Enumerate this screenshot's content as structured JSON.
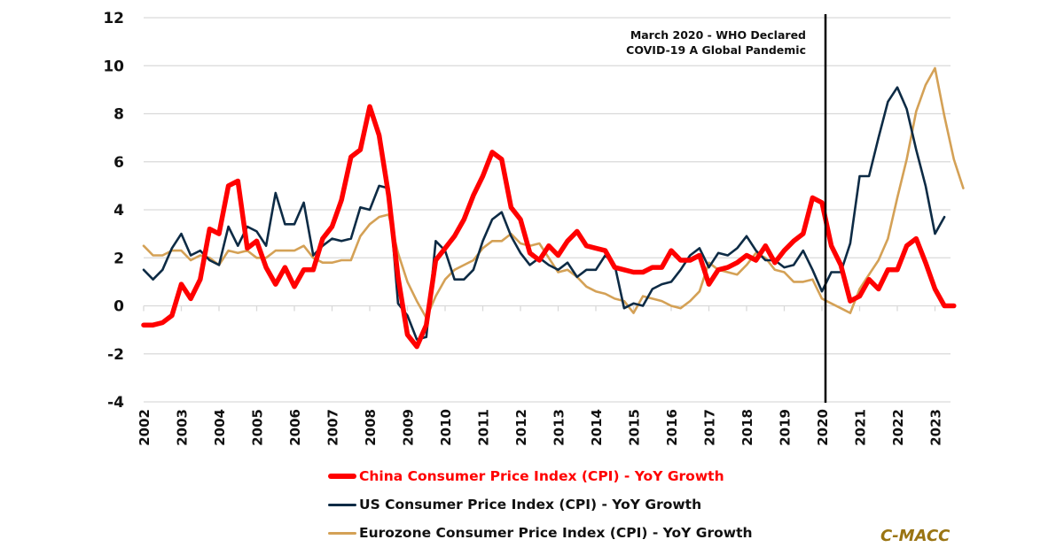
{
  "chart_data": {
    "type": "line",
    "title": "",
    "xlabel": "",
    "ylabel": "",
    "ylim": [
      -4,
      12
    ],
    "yticks": [
      12,
      10,
      8,
      6,
      4,
      2,
      0,
      -2,
      -4
    ],
    "x_categories": [
      "2002",
      "2003",
      "2004",
      "2005",
      "2006",
      "2007",
      "2008",
      "2009",
      "2010",
      "2011",
      "2012",
      "2013",
      "2014",
      "2015",
      "2016",
      "2017",
      "2018",
      "2019",
      "2020",
      "2021",
      "2022",
      "2023"
    ],
    "x_frequency": "quarterly",
    "x_start": "2002 Q1",
    "grid": true,
    "legend_position": "bottom",
    "annotation": {
      "x": "2020 Q1",
      "line1": "March 2020 - WHO Declared",
      "line2": "COVID-19 A Global Pandemic"
    },
    "series": [
      {
        "name": "China Consumer Price Index (CPI) - YoY Growth",
        "color": "#ff0000",
        "values": [
          -0.8,
          -0.8,
          -0.7,
          -0.4,
          0.9,
          0.3,
          1.1,
          3.2,
          3.0,
          5.0,
          5.2,
          2.4,
          2.7,
          1.6,
          0.9,
          1.6,
          0.8,
          1.5,
          1.5,
          2.8,
          3.3,
          4.4,
          6.2,
          6.5,
          8.3,
          7.1,
          4.6,
          1.2,
          -1.2,
          -1.7,
          -0.8,
          1.9,
          2.4,
          2.9,
          3.6,
          4.6,
          5.4,
          6.4,
          6.1,
          4.1,
          3.6,
          2.2,
          1.9,
          2.5,
          2.1,
          2.7,
          3.1,
          2.5,
          2.4,
          2.3,
          1.6,
          1.5,
          1.4,
          1.4,
          1.6,
          1.6,
          2.3,
          1.9,
          1.9,
          2.1,
          0.9,
          1.5,
          1.6,
          1.8,
          2.1,
          1.9,
          2.5,
          1.8,
          2.3,
          2.7,
          3.0,
          4.5,
          4.3,
          2.5,
          1.7,
          0.2,
          0.4,
          1.1,
          0.7,
          1.5,
          1.5,
          2.5,
          2.8,
          1.8,
          0.7,
          0.0,
          0.0
        ]
      },
      {
        "name": "US Consumer Price Index (CPI) - YoY Growth",
        "color": "#0d2b45",
        "values": [
          1.5,
          1.1,
          1.5,
          2.4,
          3.0,
          2.1,
          2.3,
          1.9,
          1.7,
          3.3,
          2.5,
          3.3,
          3.1,
          2.5,
          4.7,
          3.4,
          3.4,
          4.3,
          2.1,
          2.5,
          2.8,
          2.7,
          2.8,
          4.1,
          4.0,
          5.0,
          4.9,
          0.1,
          -0.4,
          -1.4,
          -1.3,
          2.7,
          2.3,
          1.1,
          1.1,
          1.5,
          2.7,
          3.6,
          3.9,
          2.9,
          2.2,
          1.7,
          2.0,
          1.7,
          1.5,
          1.8,
          1.2,
          1.5,
          1.5,
          2.1,
          1.7,
          -0.1,
          0.1,
          0.0,
          0.7,
          0.9,
          1.0,
          1.5,
          2.1,
          2.4,
          1.6,
          2.2,
          2.1,
          2.4,
          2.9,
          2.3,
          1.9,
          1.9,
          1.6,
          1.7,
          2.3,
          1.5,
          0.6,
          1.4,
          1.4,
          2.6,
          5.4,
          5.4,
          7.0,
          8.5,
          9.1,
          8.2,
          6.5,
          5.0,
          3.0,
          3.7
        ]
      },
      {
        "name": "Eurozone Consumer Price Index (CPI) - YoY Growth",
        "color": "#d4a156",
        "values": [
          2.5,
          2.1,
          2.1,
          2.3,
          2.3,
          1.9,
          2.1,
          2.0,
          1.7,
          2.3,
          2.2,
          2.3,
          2.0,
          2.0,
          2.3,
          2.3,
          2.3,
          2.5,
          2.0,
          1.8,
          1.8,
          1.9,
          1.9,
          2.9,
          3.4,
          3.7,
          3.8,
          2.2,
          1.0,
          0.2,
          -0.5,
          0.4,
          1.1,
          1.5,
          1.7,
          1.9,
          2.4,
          2.7,
          2.7,
          3.0,
          2.6,
          2.5,
          2.6,
          2.0,
          1.4,
          1.5,
          1.2,
          0.8,
          0.6,
          0.5,
          0.3,
          0.2,
          -0.3,
          0.4,
          0.3,
          0.2,
          0.0,
          -0.1,
          0.2,
          0.6,
          1.8,
          1.5,
          1.4,
          1.3,
          1.7,
          2.2,
          2.0,
          1.5,
          1.4,
          1.0,
          1.0,
          1.1,
          0.3,
          0.1,
          -0.1,
          -0.3,
          0.7,
          1.3,
          1.9,
          2.8,
          4.5,
          6.1,
          8.1,
          9.2,
          9.9,
          7.9,
          6.1,
          4.9
        ]
      }
    ]
  },
  "legend": {
    "items": [
      {
        "label": "China Consumer Price Index (CPI) - YoY Growth",
        "color": "#ff0000",
        "text_color": "#ff0000"
      },
      {
        "label": "US Consumer Price Index (CPI) - YoY Growth",
        "color": "#0d2b45",
        "text_color": "#111111"
      },
      {
        "label": "Eurozone Consumer Price Index (CPI) - YoY Growth",
        "color": "#d4a156",
        "text_color": "#111111"
      }
    ]
  },
  "brand": {
    "label": "C-MACC",
    "color": "#9a7412"
  }
}
